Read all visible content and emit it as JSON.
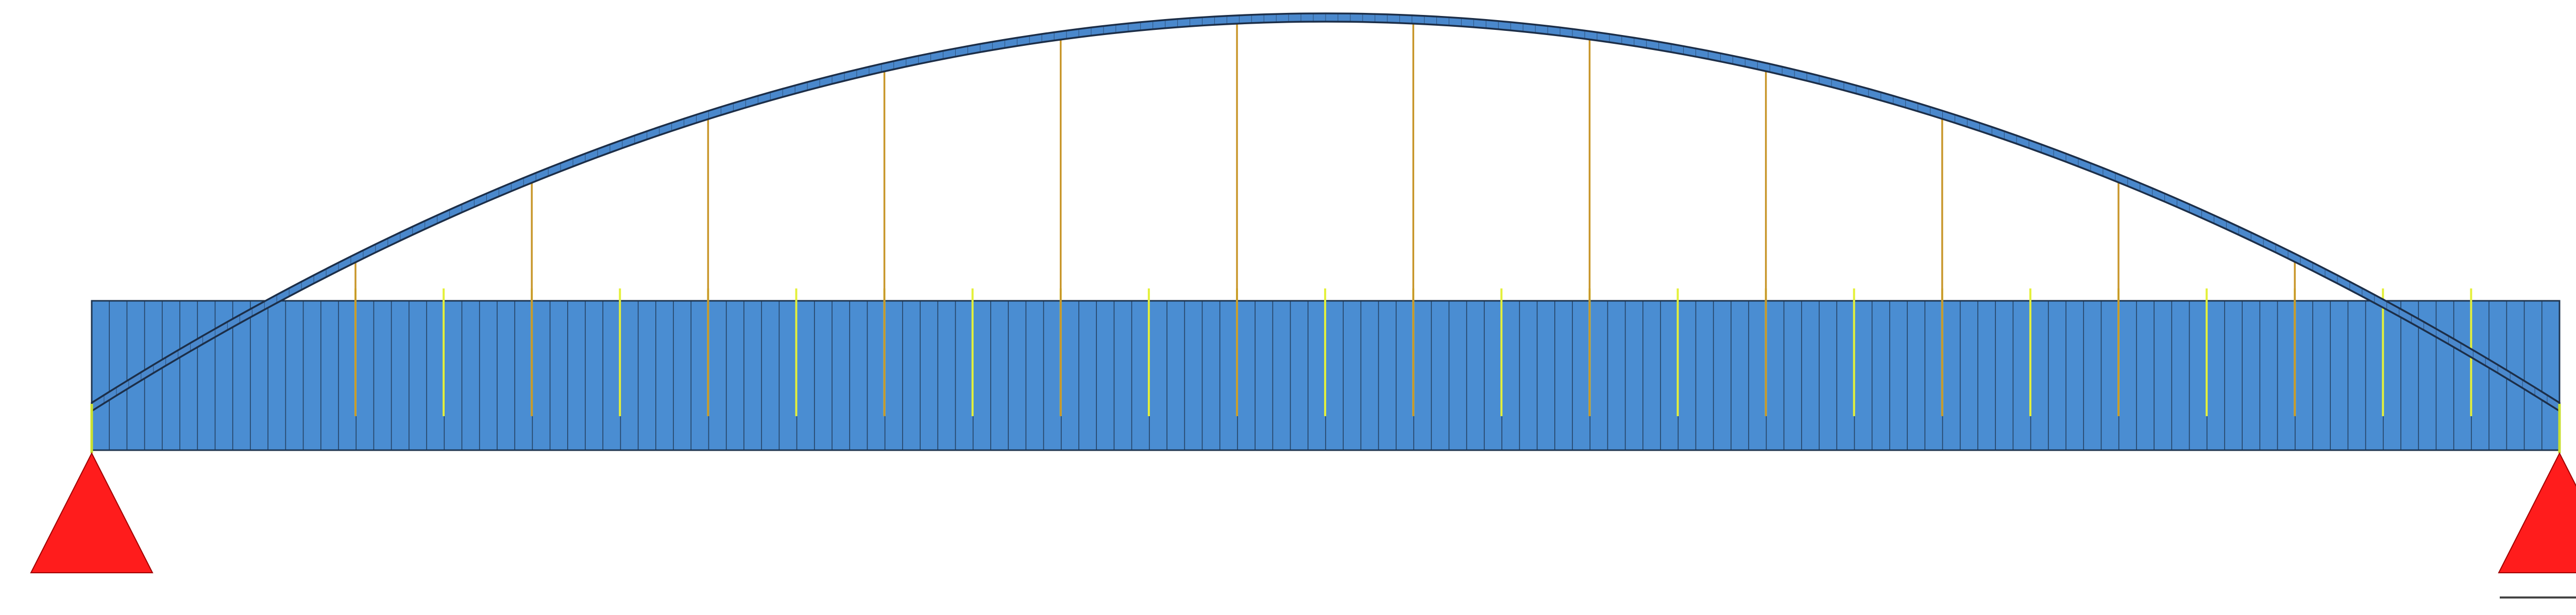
{
  "diagram": {
    "type": "tied-arch-bridge-model",
    "colors": {
      "deck_fill": "#4a8dd2",
      "deck_line": "#1f3550",
      "arch_fill": "#4a88cc",
      "arch_outline": "#1c2e48",
      "hanger_long": "#c8962a",
      "hanger_short": "#e4f03a",
      "support": "#ff1c1c",
      "support_outline": "#a00000",
      "support_post": "#c8e030",
      "scale_bar": "#444444"
    },
    "deck": {
      "segment_count": 140
    },
    "arch": {
      "segment_count": 200,
      "hanger_count": 12
    },
    "deck_hangers": {
      "count": 25
    },
    "supports": [
      {
        "id": "left",
        "icon": "triangle-support-icon"
      },
      {
        "id": "right",
        "icon": "triangle-support-icon"
      }
    ],
    "scale_bar": {
      "present": true
    }
  }
}
